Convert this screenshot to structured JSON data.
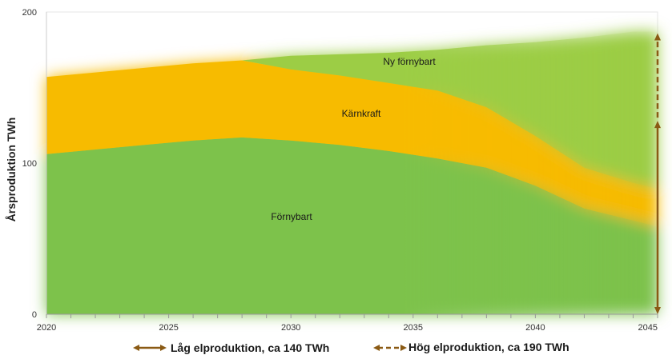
{
  "chart_data": {
    "type": "area",
    "ylabel": "Årsproduktion TWh",
    "xlabel": "",
    "title": "",
    "xlim": [
      2020,
      2045
    ],
    "ylim": [
      0,
      200
    ],
    "x_ticks": [
      2020,
      2025,
      2030,
      2035,
      2040,
      2045
    ],
    "y_ticks": [
      0,
      100,
      200
    ],
    "x_minor_step": 1,
    "grid": false,
    "x": [
      2020,
      2022,
      2024,
      2026,
      2028,
      2030,
      2032,
      2034,
      2036,
      2038,
      2040,
      2042,
      2044,
      2045
    ],
    "series": [
      {
        "name": "Förnybart",
        "color": "#7dc24b",
        "values": [
          106,
          109,
          112,
          115,
          117,
          115,
          112,
          108,
          103,
          97,
          85,
          70,
          62,
          58
        ]
      },
      {
        "name": "Kärnkraft",
        "color": "#f7bb00",
        "values": [
          51,
          51,
          51,
          51,
          51,
          47,
          46,
          45,
          45,
          40,
          33,
          27,
          25,
          25
        ]
      },
      {
        "name": "Ny förnybart",
        "color": "#9ccd45",
        "values": [
          0,
          0,
          0,
          0,
          0,
          9,
          14,
          20,
          27,
          41,
          62,
          86,
          100,
          104
        ]
      }
    ],
    "range_markers": [
      {
        "name": "Låg elproduktion, ca 140 TWh",
        "style": "solid",
        "x": 2045,
        "y0": 0,
        "y1": 128
      },
      {
        "name": "Hög elproduktion, ca 190 TWh",
        "style": "dashed",
        "x": 2045,
        "y0": 128,
        "y1": 186
      }
    ],
    "legend": {
      "placement": "bottom",
      "entries": [
        "Låg elproduktion, ca 140 TWh",
        "Hög elproduktion, ca 190 TWh"
      ]
    },
    "marker_color": "#8a5a14"
  }
}
